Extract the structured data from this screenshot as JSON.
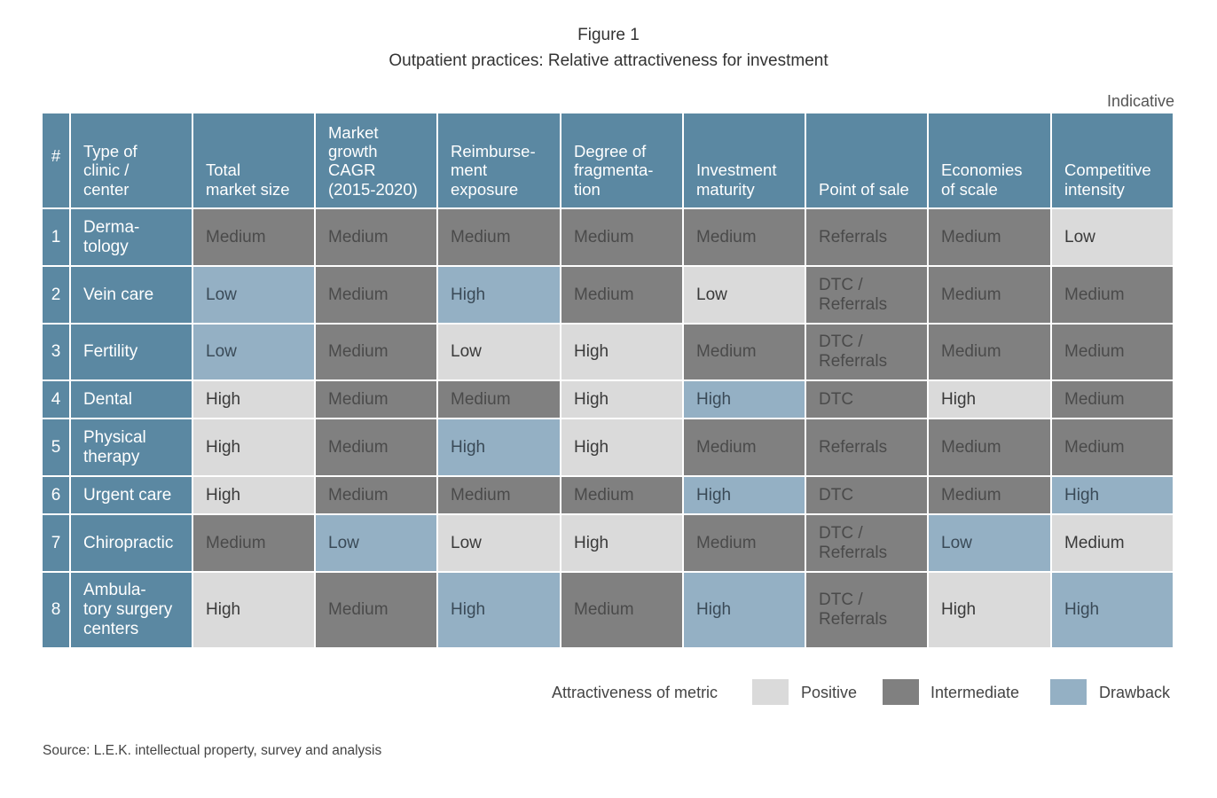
{
  "figure": {
    "label": "Figure 1",
    "title": "Outpatient practices: Relative attractiveness for investment",
    "note": "Indicative"
  },
  "chart_data": {
    "type": "table",
    "columns": [
      "#",
      "Type of\nclinic /\ncenter",
      "Total\nmarket size",
      "Market\ngrowth\nCAGR\n(2015-2020)",
      "Reimburse-\nment\nexposure",
      "Degree of\nfragmenta-\ntion",
      "Investment\nmaturity",
      "Point of sale",
      "Economies\nof scale",
      "Competitive\nintensity"
    ],
    "rows": [
      {
        "num": "1",
        "label": "Derma-\ntology",
        "cells": [
          {
            "text": "Medium",
            "rating": "intermediate"
          },
          {
            "text": "Medium",
            "rating": "intermediate"
          },
          {
            "text": "Medium",
            "rating": "intermediate"
          },
          {
            "text": "Medium",
            "rating": "intermediate"
          },
          {
            "text": "Medium",
            "rating": "intermediate"
          },
          {
            "text": "Referrals",
            "rating": "intermediate"
          },
          {
            "text": "Medium",
            "rating": "intermediate"
          },
          {
            "text": "Low",
            "rating": "positive"
          }
        ]
      },
      {
        "num": "2",
        "label": "Vein care",
        "cells": [
          {
            "text": "Low",
            "rating": "drawback"
          },
          {
            "text": "Medium",
            "rating": "intermediate"
          },
          {
            "text": "High",
            "rating": "drawback"
          },
          {
            "text": "Medium",
            "rating": "intermediate"
          },
          {
            "text": "Low",
            "rating": "positive"
          },
          {
            "text": "DTC /\nReferrals",
            "rating": "intermediate"
          },
          {
            "text": "Medium",
            "rating": "intermediate"
          },
          {
            "text": "Medium",
            "rating": "intermediate"
          }
        ]
      },
      {
        "num": "3",
        "label": "Fertility",
        "cells": [
          {
            "text": "Low",
            "rating": "drawback"
          },
          {
            "text": "Medium",
            "rating": "intermediate"
          },
          {
            "text": "Low",
            "rating": "positive"
          },
          {
            "text": "High",
            "rating": "positive"
          },
          {
            "text": "Medium",
            "rating": "intermediate"
          },
          {
            "text": "DTC /\nReferrals",
            "rating": "intermediate"
          },
          {
            "text": "Medium",
            "rating": "intermediate"
          },
          {
            "text": "Medium",
            "rating": "intermediate"
          }
        ]
      },
      {
        "num": "4",
        "label": "Dental",
        "cells": [
          {
            "text": "High",
            "rating": "positive"
          },
          {
            "text": "Medium",
            "rating": "intermediate"
          },
          {
            "text": "Medium",
            "rating": "intermediate"
          },
          {
            "text": "High",
            "rating": "positive"
          },
          {
            "text": "High",
            "rating": "drawback"
          },
          {
            "text": "DTC",
            "rating": "intermediate"
          },
          {
            "text": "High",
            "rating": "positive"
          },
          {
            "text": "Medium",
            "rating": "intermediate"
          }
        ]
      },
      {
        "num": "5",
        "label": "Physical\ntherapy",
        "cells": [
          {
            "text": "High",
            "rating": "positive"
          },
          {
            "text": "Medium",
            "rating": "intermediate"
          },
          {
            "text": "High",
            "rating": "drawback"
          },
          {
            "text": "High",
            "rating": "positive"
          },
          {
            "text": "Medium",
            "rating": "intermediate"
          },
          {
            "text": "Referrals",
            "rating": "intermediate"
          },
          {
            "text": "Medium",
            "rating": "intermediate"
          },
          {
            "text": "Medium",
            "rating": "intermediate"
          }
        ]
      },
      {
        "num": "6",
        "label": "Urgent care",
        "cells": [
          {
            "text": "High",
            "rating": "positive"
          },
          {
            "text": "Medium",
            "rating": "intermediate"
          },
          {
            "text": "Medium",
            "rating": "intermediate"
          },
          {
            "text": "Medium",
            "rating": "intermediate"
          },
          {
            "text": "High",
            "rating": "drawback"
          },
          {
            "text": "DTC",
            "rating": "intermediate"
          },
          {
            "text": "Medium",
            "rating": "intermediate"
          },
          {
            "text": "High",
            "rating": "drawback"
          }
        ]
      },
      {
        "num": "7",
        "label": "Chiropractic",
        "cells": [
          {
            "text": "Medium",
            "rating": "intermediate"
          },
          {
            "text": "Low",
            "rating": "drawback"
          },
          {
            "text": "Low",
            "rating": "positive"
          },
          {
            "text": "High",
            "rating": "positive"
          },
          {
            "text": "Medium",
            "rating": "intermediate"
          },
          {
            "text": "DTC /\nReferrals",
            "rating": "intermediate"
          },
          {
            "text": "Low",
            "rating": "drawback"
          },
          {
            "text": "Medium",
            "rating": "positive"
          }
        ]
      },
      {
        "num": "8",
        "label": "Ambula-\ntory surgery\ncenters",
        "cells": [
          {
            "text": "High",
            "rating": "positive"
          },
          {
            "text": "Medium",
            "rating": "intermediate"
          },
          {
            "text": "High",
            "rating": "drawback"
          },
          {
            "text": "Medium",
            "rating": "intermediate"
          },
          {
            "text": "High",
            "rating": "drawback"
          },
          {
            "text": "DTC /\nReferrals",
            "rating": "intermediate"
          },
          {
            "text": "High",
            "rating": "positive"
          },
          {
            "text": "High",
            "rating": "drawback"
          }
        ]
      }
    ],
    "legend": {
      "title": "Attractiveness of metric",
      "items": [
        {
          "key": "positive",
          "label": "Positive",
          "color": "#dadada"
        },
        {
          "key": "intermediate",
          "label": "Intermediate",
          "color": "#808080"
        },
        {
          "key": "drawback",
          "label": "Drawback",
          "color": "#94b0c4"
        }
      ]
    }
  },
  "colors": {
    "header": "#5b88a2",
    "positive": "#dadada",
    "intermediate": "#808080",
    "drawback": "#94b0c4"
  },
  "source": "Source: L.E.K. intellectual property, survey and analysis"
}
